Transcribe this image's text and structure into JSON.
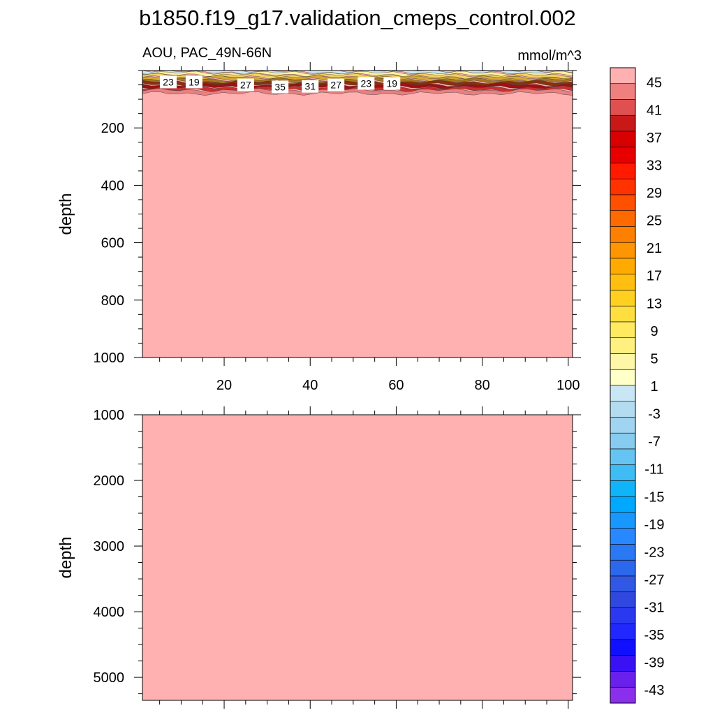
{
  "title": "b1850.f19_g17.validation_cmeps_control.002",
  "subtitle_left": "AOU, PAC_49N-66N",
  "subtitle_right": "mmol/m^3",
  "chart_data": [
    {
      "type": "heatmap",
      "panel": "upper",
      "ylabel": "depth",
      "xlim": [
        1,
        101
      ],
      "ylim": [
        1000,
        0
      ],
      "x_ticks": [
        20,
        40,
        60,
        80,
        100
      ],
      "y_ticks": [
        200,
        400,
        600,
        800,
        1000
      ],
      "fill_value_below_surface_layer": 47,
      "surface_layer_depth_range": [
        0,
        80
      ],
      "contour_labels": [
        {
          "value": "23",
          "x": 7,
          "depth": 40
        },
        {
          "value": "19",
          "x": 13,
          "depth": 40
        },
        {
          "value": "27",
          "x": 25,
          "depth": 50
        },
        {
          "value": "35",
          "x": 33,
          "depth": 57
        },
        {
          "value": "31",
          "x": 40,
          "depth": 55
        },
        {
          "value": "27",
          "x": 46,
          "depth": 50
        },
        {
          "value": "23",
          "x": 53,
          "depth": 45
        },
        {
          "value": "19",
          "x": 59,
          "depth": 45
        }
      ]
    },
    {
      "type": "heatmap",
      "panel": "lower",
      "ylabel": "depth",
      "xlim": [
        1,
        101
      ],
      "ylim": [
        5350,
        1000
      ],
      "x_ticks": [
        20,
        40,
        60,
        80,
        100
      ],
      "y_ticks": [
        1000,
        2000,
        3000,
        4000,
        5000
      ],
      "fill_value": 47
    }
  ],
  "colorbar": {
    "labels": [
      "45",
      "41",
      "37",
      "33",
      "29",
      "25",
      "21",
      "17",
      "13",
      "9",
      "5",
      "1",
      "-3",
      "-7",
      "-11",
      "-15",
      "-19",
      "-23",
      "-27",
      "-31",
      "-35",
      "-39",
      "-43"
    ],
    "colors": [
      "#ffb0b0",
      "#f08080",
      "#e05050",
      "#c81818",
      "#d80000",
      "#e80000",
      "#ff1a00",
      "#ff3300",
      "#ff5000",
      "#ff6a00",
      "#ff8000",
      "#ff9500",
      "#ffaa00",
      "#ffbe10",
      "#ffd020",
      "#ffde40",
      "#ffea60",
      "#fff080",
      "#fff7a8",
      "#ffffc8",
      "#c8e6f4",
      "#b4dcf0",
      "#a0d4f0",
      "#86ccf0",
      "#66c4f2",
      "#40bcf4",
      "#10b4f8",
      "#00a8ff",
      "#1898ff",
      "#2888ff",
      "#2a78f4",
      "#2c68ec",
      "#3058e4",
      "#3048e0",
      "#2a38f0",
      "#2028ff",
      "#1010ff",
      "#3a10f4",
      "#6a20ec",
      "#8a30ec"
    ]
  }
}
